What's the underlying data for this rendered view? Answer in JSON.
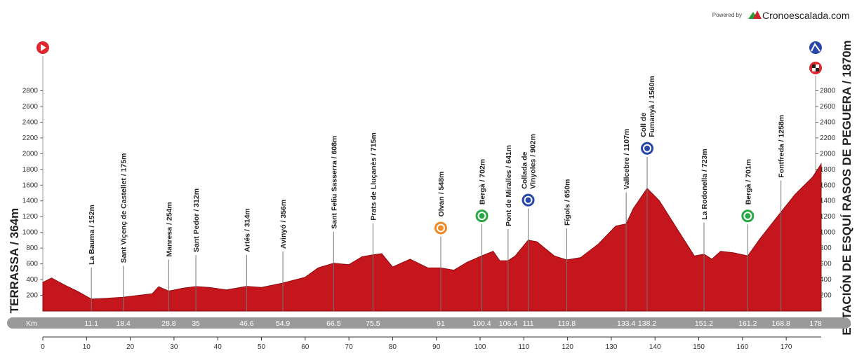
{
  "branding": {
    "powered": "Powered by",
    "site": "Cronoescalada.com"
  },
  "chart_data": {
    "type": "area",
    "start_label": "TERRASSA / 364m",
    "finish_label": "ESTACIÓN DE ESQUÍ RASOS DE PEGUERA / 1870m",
    "km_label": "Km",
    "x": [
      0,
      2,
      5,
      8,
      11.1,
      14,
      18.4,
      22,
      25,
      26.5,
      28.8,
      32,
      35,
      38,
      42,
      46.6,
      50,
      54.9,
      60,
      63,
      66.5,
      70,
      73,
      75.5,
      77.5,
      80,
      84,
      88,
      91,
      94,
      97,
      100.4,
      103,
      104.5,
      106.4,
      108,
      111,
      113,
      117,
      119.8,
      123,
      127,
      131,
      133.4,
      135,
      138.2,
      141,
      145,
      149,
      151.2,
      153,
      155,
      158,
      161.2,
      164,
      168.8,
      172,
      176,
      178
    ],
    "series": [
      {
        "color": "#c4161c",
        "values": [
          364,
          420,
          330,
          250,
          152,
          160,
          175,
          200,
          220,
          310,
          254,
          290,
          312,
          300,
          270,
          314,
          300,
          356,
          430,
          550,
          608,
          590,
          690,
          715,
          730,
          560,
          660,
          550,
          548,
          520,
          620,
          702,
          760,
          640,
          641,
          700,
          902,
          880,
          700,
          650,
          680,
          850,
          1080,
          1107,
          1300,
          1560,
          1400,
          1050,
          700,
          723,
          660,
          760,
          740,
          701,
          920,
          1258,
          1480,
          1700,
          1870
        ]
      }
    ],
    "xlim": [
      0,
      178
    ],
    "xticks": [
      0,
      10,
      20,
      30,
      40,
      50,
      60,
      70,
      80,
      90,
      100,
      110,
      120,
      130,
      140,
      150,
      160,
      170
    ],
    "ylim": [
      0,
      3000
    ],
    "yticks": [
      200,
      400,
      600,
      800,
      1000,
      1200,
      1400,
      1600,
      1800,
      2000,
      2200,
      2400,
      2600,
      2800
    ],
    "landmarks": [
      {
        "km": 11.1,
        "elevation": 152,
        "label": [
          "La Bauma / 152m"
        ]
      },
      {
        "km": 18.4,
        "elevation": 175,
        "label": [
          "Sant Viçenç de Castellet / 175m"
        ]
      },
      {
        "km": 28.8,
        "elevation": 254,
        "label": [
          "Manresa / 254m"
        ]
      },
      {
        "km": 35,
        "elevation": 312,
        "label": [
          "Sant Pedor / 312m"
        ]
      },
      {
        "km": 46.6,
        "elevation": 314,
        "label": [
          "Artés / 314m"
        ]
      },
      {
        "km": 54.9,
        "elevation": 356,
        "label": [
          "Avinyó / 356m"
        ]
      },
      {
        "km": 66.5,
        "elevation": 608,
        "label": [
          "Sant Feliu Sasserra / 608m"
        ]
      },
      {
        "km": 75.5,
        "elevation": 715,
        "label": [
          "Prats de Lluçanès / 715m"
        ]
      },
      {
        "km": 91,
        "elevation": 548,
        "label": [
          "Olvan / 548m"
        ],
        "icon": "feed"
      },
      {
        "km": 100.4,
        "elevation": 702,
        "label": [
          "Bergà / 702m"
        ],
        "icon": "sprint"
      },
      {
        "km": 106.4,
        "elevation": 641,
        "label": [
          "Pont de Miralles / 641m"
        ]
      },
      {
        "km": 111,
        "elevation": 902,
        "label": [
          "Collada de",
          "Vinyoles / 902m"
        ],
        "icon": "kom"
      },
      {
        "km": 119.8,
        "elevation": 650,
        "label": [
          "Fígols / 650m"
        ]
      },
      {
        "km": 133.4,
        "elevation": 1107,
        "label": [
          "Vallcebre / 1107m"
        ]
      },
      {
        "km": 138.2,
        "elevation": 1560,
        "label": [
          "Coll de",
          "Fumanyà / 1560m"
        ],
        "icon": "kom"
      },
      {
        "km": 151.2,
        "elevation": 723,
        "label": [
          "La Rodonella / 723m"
        ]
      },
      {
        "km": 161.2,
        "elevation": 701,
        "label": [
          "Bergà / 701m"
        ],
        "icon": "sprint"
      },
      {
        "km": 168.8,
        "elevation": 1258,
        "label": [
          "Fontfreda / 1258m"
        ]
      }
    ]
  }
}
